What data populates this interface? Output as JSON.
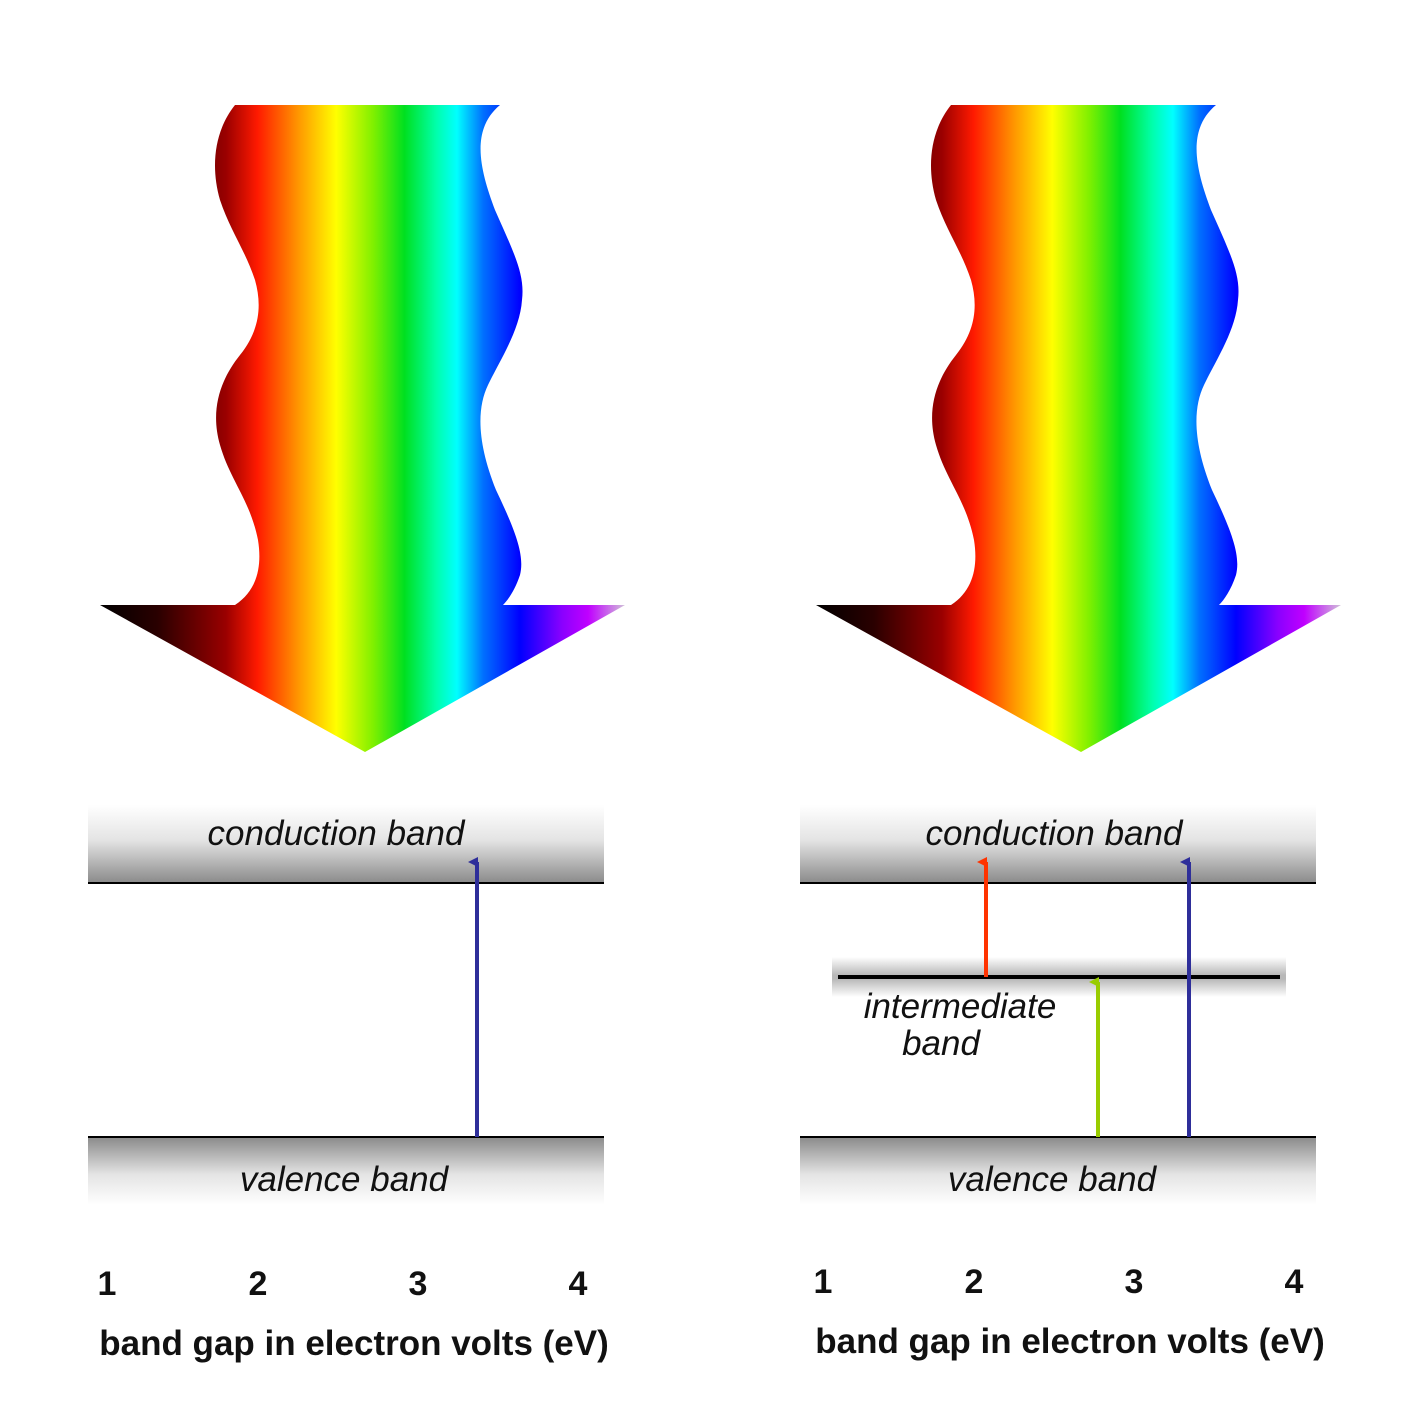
{
  "panels": [
    {
      "conduction_label": "conduction band",
      "valence_label": "valence band",
      "ticks": [
        "1",
        "2",
        "3",
        "4"
      ],
      "axis_title": "band gap in electron volts (eV)",
      "transitions": [
        {
          "color": "#2e2e9a",
          "from": "valence band",
          "to": "conduction band"
        }
      ]
    },
    {
      "conduction_label": "conduction band",
      "valence_label": "valence band",
      "intermediate_label_line1": "intermediate",
      "intermediate_label_line2": "band",
      "ticks": [
        "1",
        "2",
        "3",
        "4"
      ],
      "axis_title": "band gap in electron volts (eV)",
      "transitions": [
        {
          "color": "#ff3300",
          "from": "intermediate band",
          "to": "conduction band"
        },
        {
          "color": "#99cc00",
          "from": "valence band",
          "to": "intermediate band"
        },
        {
          "color": "#2e2e9a",
          "from": "valence band",
          "to": "conduction band"
        }
      ]
    }
  ],
  "colors": {
    "spectrum": [
      "#1a0000",
      "#a00000",
      "#ff2000",
      "#ffa000",
      "#ffff00",
      "#60e000",
      "#00d040",
      "#00ffff",
      "#0060ff",
      "#0000ff",
      "#8000ff",
      "#b000ff",
      "#c8a0c8"
    ]
  }
}
